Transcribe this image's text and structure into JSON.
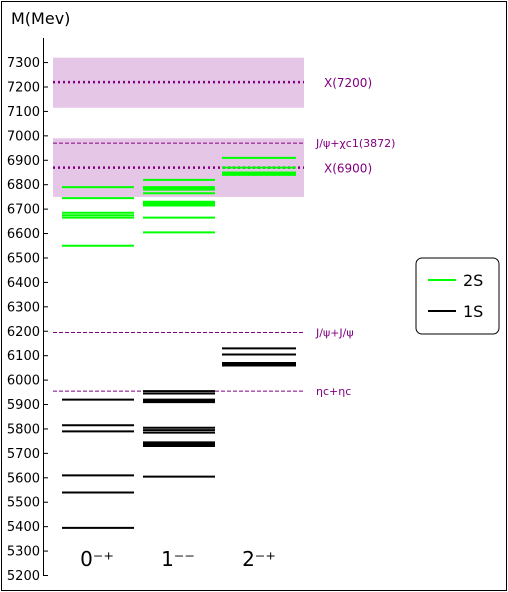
{
  "chart_data": {
    "type": "spectrum",
    "ylabel": "M(Mev)",
    "ylim": [
      5200,
      7350
    ],
    "yticks": [
      5200,
      5300,
      5400,
      5500,
      5600,
      5700,
      5800,
      5900,
      6000,
      6100,
      6200,
      6300,
      6400,
      6500,
      6600,
      6700,
      6800,
      6900,
      7000,
      7100,
      7200,
      7300
    ],
    "categories": [
      "0⁻⁺",
      "1⁻⁻",
      "2⁻⁺"
    ],
    "series": [
      {
        "name": "2S",
        "color": "#00ff00",
        "levels": [
          [
            6550,
            6665,
            6675,
            6685,
            6745,
            6790
          ],
          [
            6605,
            6665,
            6715,
            6720,
            6725,
            6730,
            6765,
            6780,
            6785,
            6790,
            6820
          ],
          [
            6840,
            6845,
            6850,
            6870,
            6910
          ]
        ]
      },
      {
        "name": "1S",
        "color": "#000000",
        "levels": [
          [
            5395,
            5540,
            5610,
            5790,
            5815,
            5920
          ],
          [
            5605,
            5730,
            5735,
            5740,
            5745,
            5785,
            5795,
            5805,
            5910,
            5915,
            5920,
            5945,
            5955
          ],
          [
            6060,
            6065,
            6070,
            6105,
            6130
          ]
        ]
      }
    ],
    "bands": [
      {
        "center": 7220,
        "low": 7115,
        "high": 7320,
        "label": "X(7200)",
        "color": "#800080",
        "band_color": "#e6c6e6"
      },
      {
        "center": 6870,
        "low": 6750,
        "high": 6990,
        "label": "X(6900)",
        "color": "#800080",
        "band_color": "#e6c6e6"
      }
    ],
    "thresholds": [
      {
        "value": 6970,
        "label": "J/ψ+χc1(3872)",
        "color": "#800080"
      },
      {
        "value": 6195,
        "label": "J/ψ+J/ψ",
        "color": "#800080"
      },
      {
        "value": 5955,
        "label": "ηc+ηc",
        "color": "#800080"
      }
    ],
    "legend_position": "right"
  }
}
